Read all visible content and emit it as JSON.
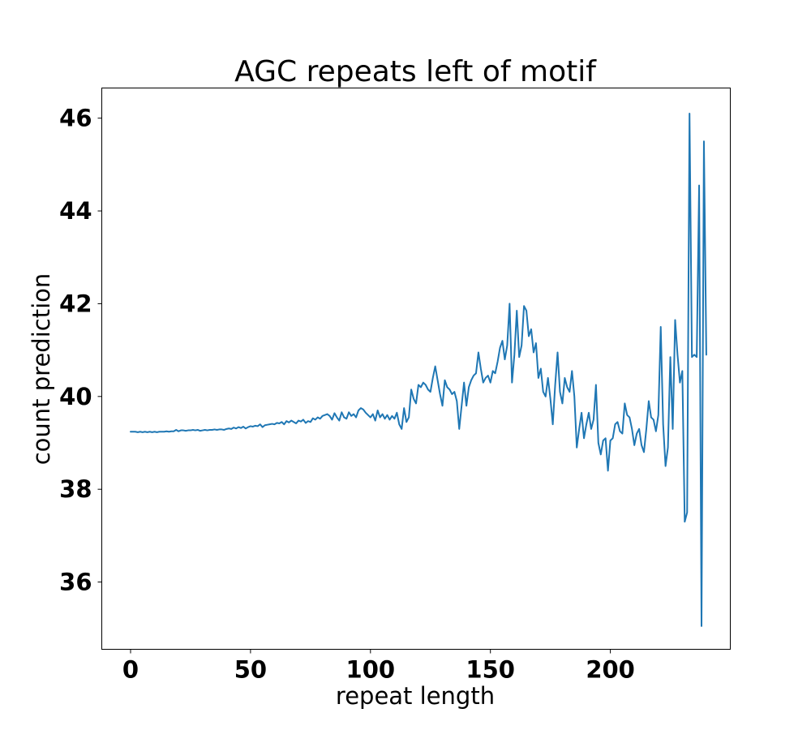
{
  "chart_data": {
    "type": "line",
    "title": "AGC repeats left of motif",
    "xlabel": "repeat length",
    "ylabel": "count prediction",
    "xlim": [
      -12,
      250
    ],
    "ylim": [
      34.55,
      46.65
    ],
    "x_ticks": [
      0,
      50,
      100,
      150,
      200
    ],
    "y_ticks": [
      36,
      38,
      40,
      42,
      44,
      46
    ],
    "grid": false,
    "series": [
      {
        "color": "#1f77b4",
        "x_start": 0,
        "x_step": 1,
        "values": [
          39.24,
          39.24,
          39.24,
          39.23,
          39.24,
          39.23,
          39.24,
          39.23,
          39.24,
          39.23,
          39.24,
          39.23,
          39.24,
          39.24,
          39.24,
          39.25,
          39.24,
          39.25,
          39.25,
          39.28,
          39.25,
          39.27,
          39.27,
          39.26,
          39.27,
          39.27,
          39.28,
          39.27,
          39.28,
          39.26,
          39.27,
          39.28,
          39.27,
          39.28,
          39.28,
          39.29,
          39.28,
          39.29,
          39.29,
          39.28,
          39.3,
          39.31,
          39.3,
          39.33,
          39.31,
          39.34,
          39.32,
          39.35,
          39.31,
          39.34,
          39.36,
          39.35,
          39.37,
          39.36,
          39.4,
          39.34,
          39.38,
          39.39,
          39.4,
          39.41,
          39.4,
          39.43,
          39.42,
          39.45,
          39.4,
          39.47,
          39.44,
          39.48,
          39.45,
          39.42,
          39.48,
          39.46,
          39.5,
          39.43,
          39.47,
          39.45,
          39.53,
          39.5,
          39.55,
          39.52,
          39.58,
          39.6,
          39.62,
          39.58,
          39.5,
          39.64,
          39.55,
          39.48,
          39.66,
          39.55,
          39.52,
          39.66,
          39.58,
          39.62,
          39.55,
          39.7,
          39.75,
          39.72,
          39.65,
          39.6,
          39.55,
          39.62,
          39.48,
          39.7,
          39.55,
          39.62,
          39.52,
          39.6,
          39.5,
          39.58,
          39.52,
          39.65,
          39.4,
          39.3,
          39.75,
          39.45,
          39.55,
          40.15,
          39.95,
          39.85,
          40.25,
          40.2,
          40.3,
          40.25,
          40.15,
          40.1,
          40.4,
          40.65,
          40.35,
          40.05,
          39.8,
          40.35,
          40.2,
          40.15,
          40.05,
          40.1,
          39.9,
          39.3,
          39.8,
          40.3,
          39.8,
          40.2,
          40.35,
          40.45,
          40.5,
          40.95,
          40.6,
          40.3,
          40.4,
          40.45,
          40.3,
          40.55,
          40.5,
          40.75,
          41.05,
          41.2,
          40.8,
          41.1,
          42.0,
          40.3,
          40.9,
          41.85,
          40.85,
          41.1,
          41.95,
          41.85,
          41.3,
          41.45,
          40.95,
          41.15,
          40.4,
          40.6,
          40.1,
          40.0,
          40.4,
          39.95,
          39.4,
          40.25,
          40.95,
          40.1,
          39.85,
          40.4,
          40.2,
          40.1,
          40.55,
          40.0,
          38.9,
          39.3,
          39.65,
          39.1,
          39.4,
          39.65,
          39.3,
          39.5,
          40.25,
          39.0,
          38.75,
          39.05,
          39.1,
          38.4,
          39.05,
          39.1,
          39.4,
          39.45,
          39.25,
          39.2,
          39.85,
          39.6,
          39.55,
          39.3,
          38.95,
          39.2,
          39.3,
          38.95,
          38.8,
          39.3,
          39.9,
          39.55,
          39.5,
          39.25,
          39.6,
          41.5,
          39.4,
          38.5,
          38.9,
          40.85,
          39.3,
          41.65,
          40.9,
          40.3,
          40.55,
          37.3,
          37.5,
          46.1,
          40.85,
          40.9,
          40.85,
          44.55,
          35.05,
          45.5,
          40.9
        ]
      }
    ]
  }
}
